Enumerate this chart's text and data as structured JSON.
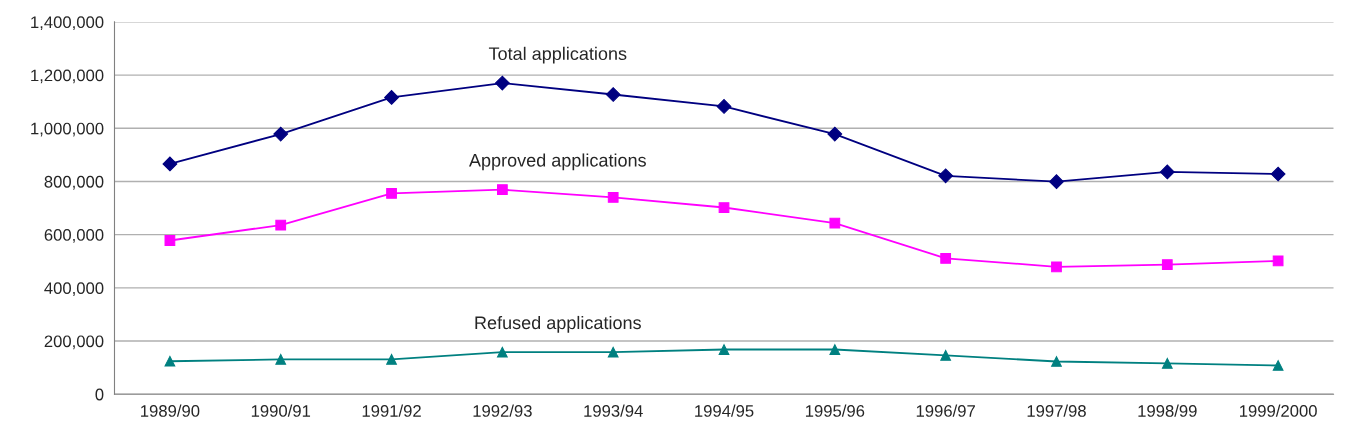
{
  "chart_data": {
    "type": "line",
    "categories": [
      "1989/90",
      "1990/91",
      "1991/92",
      "1992/93",
      "1993/94",
      "1994/95",
      "1995/96",
      "1996/97",
      "1997/98",
      "1998/99",
      "1999/2000"
    ],
    "series": [
      {
        "name": "Total applications",
        "color": "#000080",
        "marker": "diamond",
        "values": [
          866000,
          978000,
          1116000,
          1170000,
          1127000,
          1082000,
          978000,
          821000,
          799000,
          836000,
          828000
        ]
      },
      {
        "name": "Approved applications",
        "color": "#ff00ff",
        "marker": "square",
        "values": [
          578000,
          636000,
          755000,
          769000,
          740000,
          702000,
          643000,
          511000,
          479000,
          487000,
          501000
        ]
      },
      {
        "name": "Refused applications",
        "color": "#008080",
        "marker": "triangle",
        "values": [
          124000,
          131000,
          131000,
          158000,
          158000,
          168000,
          168000,
          146000,
          123000,
          116000,
          108000
        ]
      }
    ],
    "ylim": [
      0,
      1400000
    ],
    "yticks": [
      {
        "value": 0,
        "label": "0"
      },
      {
        "value": 200000,
        "label": "200,000"
      },
      {
        "value": 400000,
        "label": "400,000"
      },
      {
        "value": 600000,
        "label": "600,000"
      },
      {
        "value": 800000,
        "label": "800,000"
      },
      {
        "value": 1000000,
        "label": "1,000,000"
      },
      {
        "value": 1200000,
        "label": "1,200,000"
      },
      {
        "value": 1400000,
        "label": "1,400,000"
      }
    ],
    "grid": "y",
    "legend": false,
    "line_style": "solid"
  }
}
